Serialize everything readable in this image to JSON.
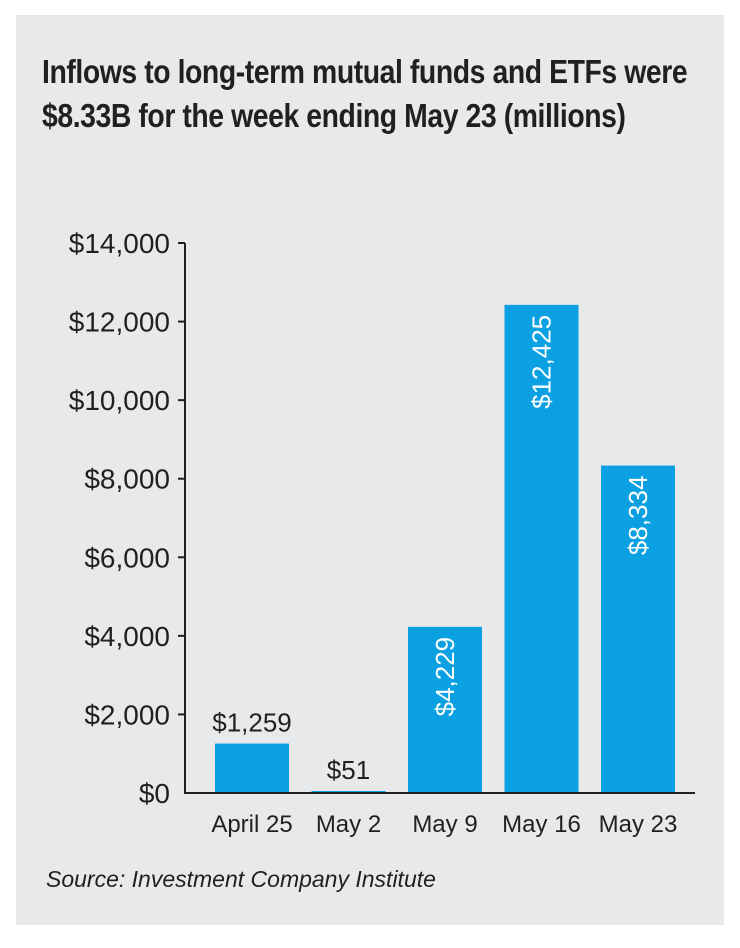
{
  "chart_data": {
    "type": "bar",
    "title": "Inflows to long-term mutual funds and ETFs were $8.33B for the week ending May 23 (millions)",
    "categories": [
      "April 25",
      "May 2",
      "May 9",
      "May 16",
      "May 23"
    ],
    "values": [
      1259,
      51,
      4229,
      12425,
      8334
    ],
    "value_labels": [
      "$1,259",
      "$51",
      "$4,229",
      "$12,425",
      "$8,334"
    ],
    "ylim": [
      0,
      14000
    ],
    "yticks": [
      0,
      2000,
      4000,
      6000,
      8000,
      10000,
      12000,
      14000
    ],
    "ytick_labels": [
      "$0",
      "$2,000",
      "$4,000",
      "$6,000",
      "$8,000",
      "$10,000",
      "$12,000",
      "$14,000"
    ],
    "xlabel": "",
    "ylabel": "",
    "grid": false,
    "bar_color": "#0aa0e2",
    "source": "Source: Investment Company Institute"
  }
}
